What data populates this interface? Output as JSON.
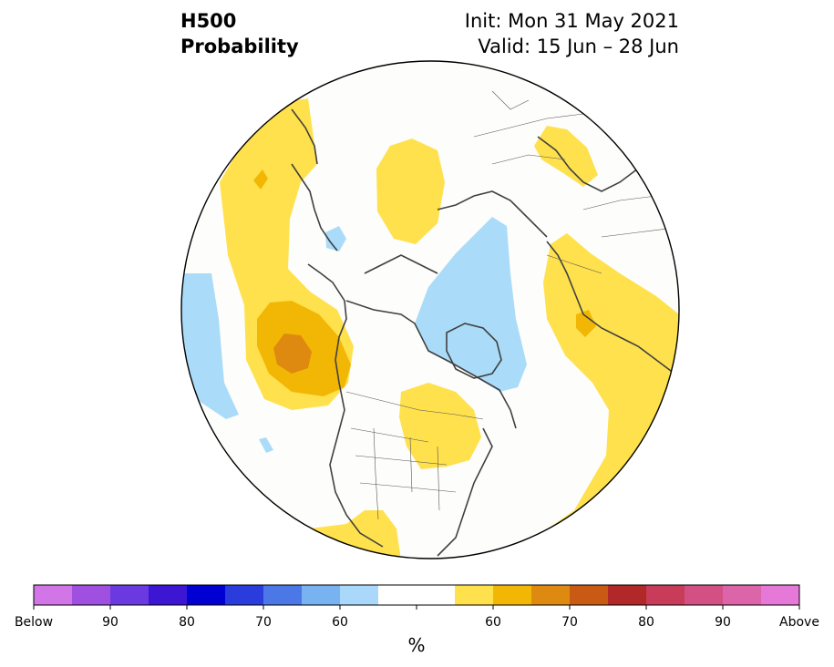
{
  "header": {
    "variable": "H500",
    "product": "Probability",
    "init_prefix": "Init:",
    "init_date": "Mon 31 May 2021",
    "valid_prefix": "Valid:",
    "valid_range": "15 Jun – 28 Jun"
  },
  "colorbar": {
    "label": "%",
    "ticks": [
      "Below",
      "90",
      "80",
      "70",
      "60",
      "60",
      "70",
      "80",
      "90",
      "Above"
    ],
    "colors": [
      "#d276e7",
      "#a050e0",
      "#6a3ae0",
      "#3d16d4",
      "#0000d2",
      "#2a3cdc",
      "#4b78e6",
      "#78b2f0",
      "#aad8fa",
      "#ffffff",
      "#ffffff",
      "#ffe14d",
      "#f2b705",
      "#de8a10",
      "#c85a14",
      "#b22828",
      "#c83c5a",
      "#d25084",
      "#dc64a8",
      "#e678d8"
    ]
  },
  "map": {
    "colors": {
      "light_blue": "#aadcfa",
      "yellow": "#ffe14d",
      "gold": "#f2b705",
      "orange": "#de8a10",
      "coast": "#404040",
      "border": "#555555"
    }
  }
}
